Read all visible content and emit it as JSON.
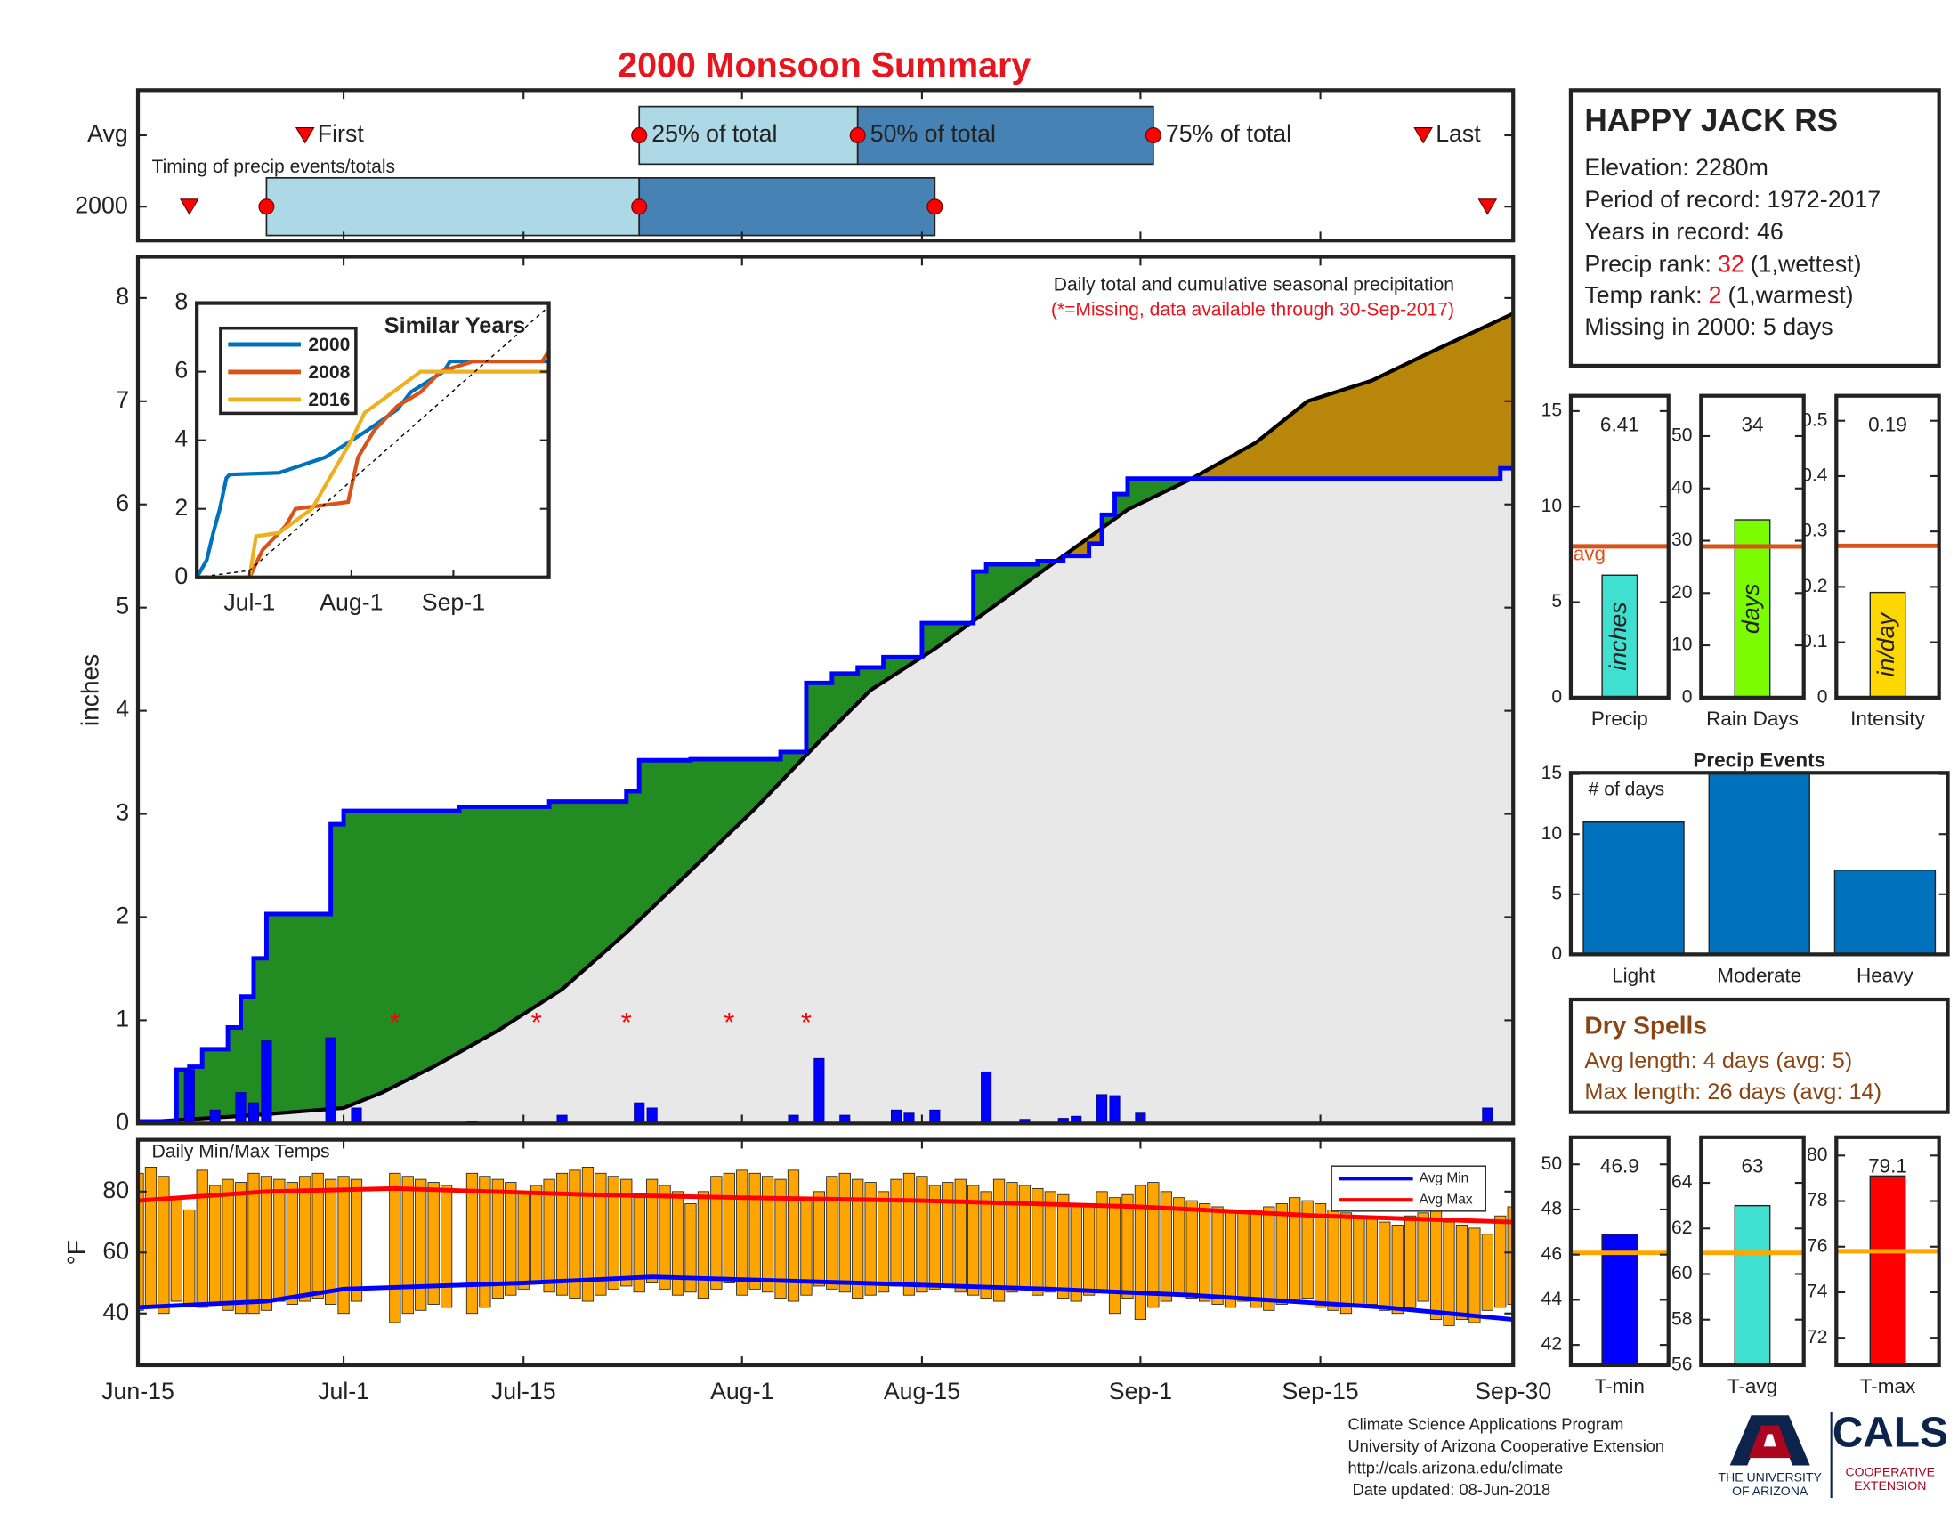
{
  "title": "2000 Monsoon Summary",
  "chart_data": [
    {
      "type": "timeline",
      "note": "Timing of precip events/totals",
      "xlim": [
        "Jun-15",
        "Sep-30"
      ],
      "marker_labels": [
        "First",
        "25% of total",
        "50% of total",
        "75% of total",
        "Last"
      ],
      "rows": [
        {
          "name": "Avg",
          "dates": [
            "Jun-28",
            "Jul-24",
            "Aug-10",
            "Sep-2",
            "Sep-23"
          ]
        },
        {
          "name": "2000",
          "dates": [
            "Jun-19",
            "Jun-25",
            "Jul-24",
            "Aug-16",
            "Sep-28"
          ]
        }
      ],
      "colors": [
        "#add8e6",
        "#4682b4"
      ],
      "marker_color": "#ff0000"
    },
    {
      "type": "cumulative",
      "annotation": "Daily total and cumulative seasonal precipitation",
      "note": "(*=Missing, data available through 30-Sep-2017)",
      "ylabel": "inches",
      "xlim": [
        "Jun-15",
        "Sep-30"
      ],
      "ylim": [
        0,
        8.4
      ],
      "yticks": [
        0,
        1,
        2,
        3,
        4,
        5,
        6,
        7,
        8
      ],
      "above_color": "#228b22",
      "below_color": "#b8860b",
      "base_color": "#e8e8e8",
      "series": [
        {
          "color": "#0000ff",
          "step": true,
          "x": [
            "Jun-15",
            "Jun-18",
            "Jun-19",
            "Jun-20",
            "Jun-22",
            "Jun-23",
            "Jun-24",
            "Jun-25",
            "Jun-30",
            "Jul-1",
            "Jul-10",
            "Jul-17",
            "Jul-23",
            "Jul-24",
            "Jul-28",
            "Aug-4",
            "Aug-6",
            "Aug-8",
            "Aug-10",
            "Aug-12",
            "Aug-15",
            "Aug-19",
            "Aug-20",
            "Aug-24",
            "Aug-26",
            "Aug-28",
            "Aug-29",
            "Aug-30",
            "Aug-31",
            "Sep-29",
            "Sep-30"
          ],
          "values": [
            0.02,
            0.52,
            0.55,
            0.72,
            0.93,
            1.23,
            1.6,
            2.03,
            2.9,
            3.03,
            3.07,
            3.12,
            3.22,
            3.52,
            3.53,
            3.6,
            4.27,
            4.36,
            4.42,
            4.52,
            4.85,
            5.35,
            5.42,
            5.45,
            5.5,
            5.62,
            5.9,
            6.1,
            6.25,
            6.35,
            6.35
          ]
        },
        {
          "color": "#000000",
          "step": false,
          "x": [
            "Jun-15",
            "Jun-24",
            "Jul-1",
            "Jul-4",
            "Jul-8",
            "Jul-13",
            "Jul-18",
            "Jul-23",
            "Jul-28",
            "Aug-2",
            "Aug-7",
            "Aug-11",
            "Aug-16",
            "Aug-21",
            "Aug-26",
            "Aug-31",
            "Sep-5",
            "Sep-10",
            "Sep-14",
            "Sep-19",
            "Sep-24",
            "Sep-30"
          ],
          "values": [
            0.01,
            0.08,
            0.15,
            0.3,
            0.55,
            0.9,
            1.3,
            1.85,
            2.45,
            3.05,
            3.7,
            4.2,
            4.6,
            5.05,
            5.5,
            5.95,
            6.25,
            6.6,
            7.0,
            7.2,
            7.5,
            7.85
          ]
        }
      ],
      "bars": {
        "color": "#0000ff",
        "x": [
          "Jun-19",
          "Jun-21",
          "Jun-23",
          "Jun-24",
          "Jun-25",
          "Jun-30",
          "Jul-2",
          "Jul-11",
          "Jul-18",
          "Jul-24",
          "Jul-25",
          "Aug-5",
          "Aug-7",
          "Aug-9",
          "Aug-13",
          "Aug-14",
          "Aug-16",
          "Aug-20",
          "Aug-23",
          "Aug-26",
          "Aug-27",
          "Aug-29",
          "Aug-30",
          "Sep-1",
          "Sep-28"
        ],
        "values": [
          0.52,
          0.13,
          0.3,
          0.2,
          0.8,
          0.83,
          0.15,
          0.02,
          0.08,
          0.2,
          0.15,
          0.08,
          0.63,
          0.08,
          0.13,
          0.1,
          0.13,
          0.5,
          0.04,
          0.05,
          0.07,
          0.28,
          0.27,
          0.1,
          0.15
        ]
      },
      "missing": {
        "marker": "*",
        "color": "#ff0000",
        "x": [
          "Jul-5",
          "Jul-16",
          "Jul-23",
          "Jul-31",
          "Aug-6"
        ],
        "values": [
          1,
          1,
          1,
          1,
          1
        ]
      }
    },
    {
      "type": "line",
      "title": "Similar Years",
      "xlim": [
        "Jun-15",
        "Sep-30"
      ],
      "xticks": [
        "Jul-1",
        "Aug-1",
        "Sep-1"
      ],
      "ylim": [
        0,
        8
      ],
      "yticks": [
        0,
        2,
        4,
        6,
        8
      ],
      "series": [
        {
          "name": "2000",
          "color": "#0072bd",
          "x": [
            "Jun-15",
            "Jun-18",
            "Jun-19",
            "Jun-20",
            "Jun-22",
            "Jun-24",
            "Jun-25",
            "Jul-10",
            "Jul-24",
            "Aug-6",
            "Aug-15",
            "Aug-19",
            "Aug-29",
            "Aug-31",
            "Sep-30"
          ],
          "values": [
            0,
            0.5,
            0.9,
            1.3,
            2.0,
            2.9,
            3.0,
            3.05,
            3.5,
            4.3,
            4.9,
            5.4,
            6.0,
            6.3,
            6.3
          ]
        },
        {
          "name": "2008",
          "color": "#d95319",
          "x": [
            "Jun-15",
            "Jul-1",
            "Jul-5",
            "Jul-12",
            "Jul-15",
            "Jul-31",
            "Aug-3",
            "Aug-8",
            "Aug-15",
            "Aug-22",
            "Aug-28",
            "Sep-7",
            "Sep-28",
            "Sep-30"
          ],
          "values": [
            0,
            0,
            0.8,
            1.5,
            2.0,
            2.2,
            3.5,
            4.3,
            5.0,
            5.4,
            6.0,
            6.3,
            6.3,
            6.6
          ]
        },
        {
          "name": "2016",
          "color": "#edb120",
          "x": [
            "Jun-15",
            "Jul-1",
            "Jul-3",
            "Jul-10",
            "Jul-20",
            "Aug-1",
            "Aug-5",
            "Aug-15",
            "Aug-22",
            "Sep-30"
          ],
          "values": [
            0,
            0,
            1.2,
            1.3,
            2.0,
            4.0,
            4.8,
            5.5,
            6.0,
            6.0
          ]
        },
        {
          "color": "#000000",
          "dashed": true,
          "x": [
            "Jun-15",
            "Jul-1",
            "Sep-30"
          ],
          "values": [
            0,
            0.2,
            7.9
          ]
        }
      ]
    },
    {
      "type": "range-bar",
      "title": "Daily Min/Max Temps",
      "ylabel": "°F",
      "xlim": [
        "Jun-15",
        "Sep-30"
      ],
      "xticks": [
        "Jun-15",
        "Jul-1",
        "Jul-15",
        "Aug-1",
        "Aug-15",
        "Sep-1",
        "Sep-15",
        "Sep-30"
      ],
      "ylim": [
        23,
        97
      ],
      "yticks": [
        40,
        60,
        80
      ],
      "bar_color": "#ffa500",
      "categories": [
        "Jun-15",
        "Jun-16",
        "Jun-17",
        "Jun-18",
        "Jun-19",
        "Jun-20",
        "Jun-21",
        "Jun-22",
        "Jun-23",
        "Jun-24",
        "Jun-25",
        "Jun-26",
        "Jun-27",
        "Jun-28",
        "Jun-29",
        "Jun-30",
        "Jul-1",
        "Jul-2",
        "Jul-3",
        "Jul-4",
        "Jul-5",
        "Jul-6",
        "Jul-7",
        "Jul-8",
        "Jul-9",
        "Jul-10",
        "Jul-11",
        "Jul-12",
        "Jul-13",
        "Jul-14",
        "Jul-15",
        "Jul-16",
        "Jul-17",
        "Jul-18",
        "Jul-19",
        "Jul-20",
        "Jul-21",
        "Jul-22",
        "Jul-23",
        "Jul-24",
        "Jul-25",
        "Jul-26",
        "Jul-27",
        "Jul-28",
        "Jul-29",
        "Jul-30",
        "Jul-31",
        "Aug-1",
        "Aug-2",
        "Aug-3",
        "Aug-4",
        "Aug-5",
        "Aug-6",
        "Aug-7",
        "Aug-8",
        "Aug-9",
        "Aug-10",
        "Aug-11",
        "Aug-12",
        "Aug-13",
        "Aug-14",
        "Aug-15",
        "Aug-16",
        "Aug-17",
        "Aug-18",
        "Aug-19",
        "Aug-20",
        "Aug-21",
        "Aug-22",
        "Aug-23",
        "Aug-24",
        "Aug-25",
        "Aug-26",
        "Aug-27",
        "Aug-28",
        "Aug-29",
        "Aug-30",
        "Aug-31",
        "Sep-1",
        "Sep-2",
        "Sep-3",
        "Sep-4",
        "Sep-5",
        "Sep-6",
        "Sep-7",
        "Sep-8",
        "Sep-9",
        "Sep-10",
        "Sep-11",
        "Sep-12",
        "Sep-13",
        "Sep-14",
        "Sep-15",
        "Sep-16",
        "Sep-17",
        "Sep-18",
        "Sep-19",
        "Sep-20",
        "Sep-21",
        "Sep-22",
        "Sep-23",
        "Sep-24",
        "Sep-25",
        "Sep-26",
        "Sep-27",
        "Sep-28",
        "Sep-29",
        "Sep-30"
      ],
      "max": [
        86,
        88,
        85,
        78,
        74,
        87,
        82,
        84,
        83,
        86,
        85,
        84,
        83,
        85,
        86,
        84,
        85,
        84,
        null,
        null,
        86,
        85,
        84,
        83,
        82,
        null,
        86,
        85,
        84,
        83,
        80,
        82,
        84,
        86,
        87,
        88,
        86,
        85,
        84,
        78,
        84,
        82,
        80,
        76,
        80,
        85,
        86,
        87,
        86,
        85,
        84,
        87,
        78,
        80,
        85,
        86,
        84,
        83,
        80,
        84,
        86,
        85,
        82,
        83,
        84,
        82,
        80,
        84,
        83,
        82,
        81,
        80,
        79,
        76,
        75,
        80,
        78,
        79,
        82,
        83,
        80,
        78,
        77,
        76,
        75,
        74,
        73,
        74,
        75,
        76,
        78,
        77,
        76,
        74,
        73,
        72,
        71,
        70,
        69,
        72,
        73,
        74,
        70,
        69,
        68,
        66,
        72,
        75
      ],
      "min": [
        41,
        42,
        40,
        44,
        43,
        42,
        43,
        41,
        40,
        40,
        41,
        44,
        43,
        44,
        45,
        43,
        40,
        44,
        null,
        null,
        37,
        40,
        41,
        43,
        42,
        null,
        40,
        42,
        45,
        46,
        48,
        50,
        47,
        46,
        45,
        44,
        46,
        48,
        49,
        47,
        50,
        48,
        46,
        47,
        45,
        48,
        50,
        46,
        48,
        47,
        45,
        44,
        46,
        49,
        48,
        47,
        45,
        46,
        47,
        49,
        46,
        47,
        48,
        49,
        47,
        46,
        45,
        44,
        47,
        48,
        46,
        47,
        45,
        44,
        46,
        47,
        40,
        45,
        38,
        42,
        44,
        46,
        45,
        44,
        43,
        42,
        44,
        42,
        41,
        43,
        44,
        45,
        42,
        41,
        40,
        42,
        43,
        41,
        40,
        42,
        44,
        38,
        36,
        38,
        37,
        41,
        42,
        43
      ],
      "series": [
        {
          "name": "Avg Min",
          "color": "#0000ff",
          "x": [
            "Jun-15",
            "Jun-25",
            "Jul-1",
            "Jul-15",
            "Jul-25",
            "Aug-10",
            "Aug-25",
            "Sep-5",
            "Sep-20",
            "Sep-30"
          ],
          "values": [
            42,
            44,
            48,
            50,
            52,
            50,
            48,
            46,
            42,
            38
          ]
        },
        {
          "name": "Avg Max",
          "color": "#ff0000",
          "x": [
            "Jun-15",
            "Jun-25",
            "Jul-5",
            "Jul-20",
            "Aug-1",
            "Aug-15",
            "Sep-1",
            "Sep-15",
            "Sep-30"
          ],
          "values": [
            77,
            80,
            81,
            79,
            78,
            77,
            75,
            72,
            70
          ]
        }
      ]
    },
    {
      "type": "bar",
      "categories": [
        "Precip"
      ],
      "values": [
        6.41
      ],
      "avg": 7.92,
      "avg_label": "avg",
      "unit": "inches",
      "color": "#40e0d0",
      "avg_color": "#d95319",
      "ylim": [
        0,
        15.8
      ],
      "yticks": [
        0,
        5,
        10,
        15
      ]
    },
    {
      "type": "bar",
      "categories": [
        "Rain Days"
      ],
      "values": [
        34
      ],
      "avg": 28.9,
      "unit": "days",
      "color": "#7cfc00",
      "avg_color": "#d95319",
      "ylim": [
        0,
        57.7
      ],
      "yticks": [
        0,
        10,
        20,
        30,
        40,
        50
      ]
    },
    {
      "type": "bar",
      "categories": [
        "Intensity"
      ],
      "values": [
        0.19
      ],
      "avg": 0.274,
      "unit": "in/day",
      "color": "#ffd700",
      "avg_color": "#d95319",
      "ylim": [
        0,
        0.545
      ],
      "yticks": [
        0,
        0.1,
        0.2,
        0.3,
        0.4,
        0.5
      ]
    },
    {
      "type": "bar",
      "title": "Precip Events",
      "annotation": "# of days",
      "categories": [
        "Light",
        "Moderate",
        "Heavy"
      ],
      "values": [
        11,
        15,
        7
      ],
      "color": "#0072bd",
      "ylim": [
        0,
        15.1
      ],
      "yticks": [
        0,
        5,
        10,
        15
      ]
    },
    {
      "type": "bar",
      "categories": [
        "T-min"
      ],
      "values": [
        46.9
      ],
      "avg": 46.08,
      "color": "#0000ff",
      "avg_color": "#ffa500",
      "ylim": [
        41.1,
        51.2
      ],
      "yticks": [
        42,
        44,
        46,
        48,
        50
      ]
    },
    {
      "type": "bar",
      "categories": [
        "T-avg"
      ],
      "values": [
        63
      ],
      "avg": 60.93,
      "color": "#40e0d0",
      "avg_color": "#ffa500",
      "ylim": [
        56,
        66
      ],
      "yticks": [
        56,
        58,
        60,
        62,
        64
      ]
    },
    {
      "type": "bar",
      "categories": [
        "T-max"
      ],
      "values": [
        79.1
      ],
      "avg": 75.8,
      "color": "#ff0000",
      "avg_color": "#ffa500",
      "ylim": [
        70.8,
        80.8
      ],
      "yticks": [
        72,
        74,
        76,
        78,
        80
      ]
    }
  ],
  "station": {
    "name": "HAPPY JACK RS",
    "elevation": "Elevation: 2280m",
    "period": "Period of record: 1972-2017",
    "years": "Years in record: 46",
    "precip_rank": {
      "label": "Precip rank:",
      "value": 32,
      "note": "(1,wettest)"
    },
    "temp_rank": {
      "label": "Temp rank:",
      "value": 2,
      "note": "(1,warmest)"
    },
    "missing": "Missing in 2000: 5 days"
  },
  "dry_spells": {
    "title": "Dry Spells",
    "avg": "Avg length: 4 days (avg: 5)",
    "max": "Max length: 26 days (avg: 14)"
  },
  "footer": [
    "Climate Science Applications Program",
    "University of Arizona Cooperative Extension",
    "http://cals.arizona.edu/climate",
    " Date updated: 08-Jun-2018"
  ],
  "logo": {
    "university": [
      "THE UNIVERSITY",
      "OF ARIZONA"
    ],
    "cals": "CALS",
    "extension": [
      "COOPERATIVE",
      "EXTENSION"
    ]
  }
}
